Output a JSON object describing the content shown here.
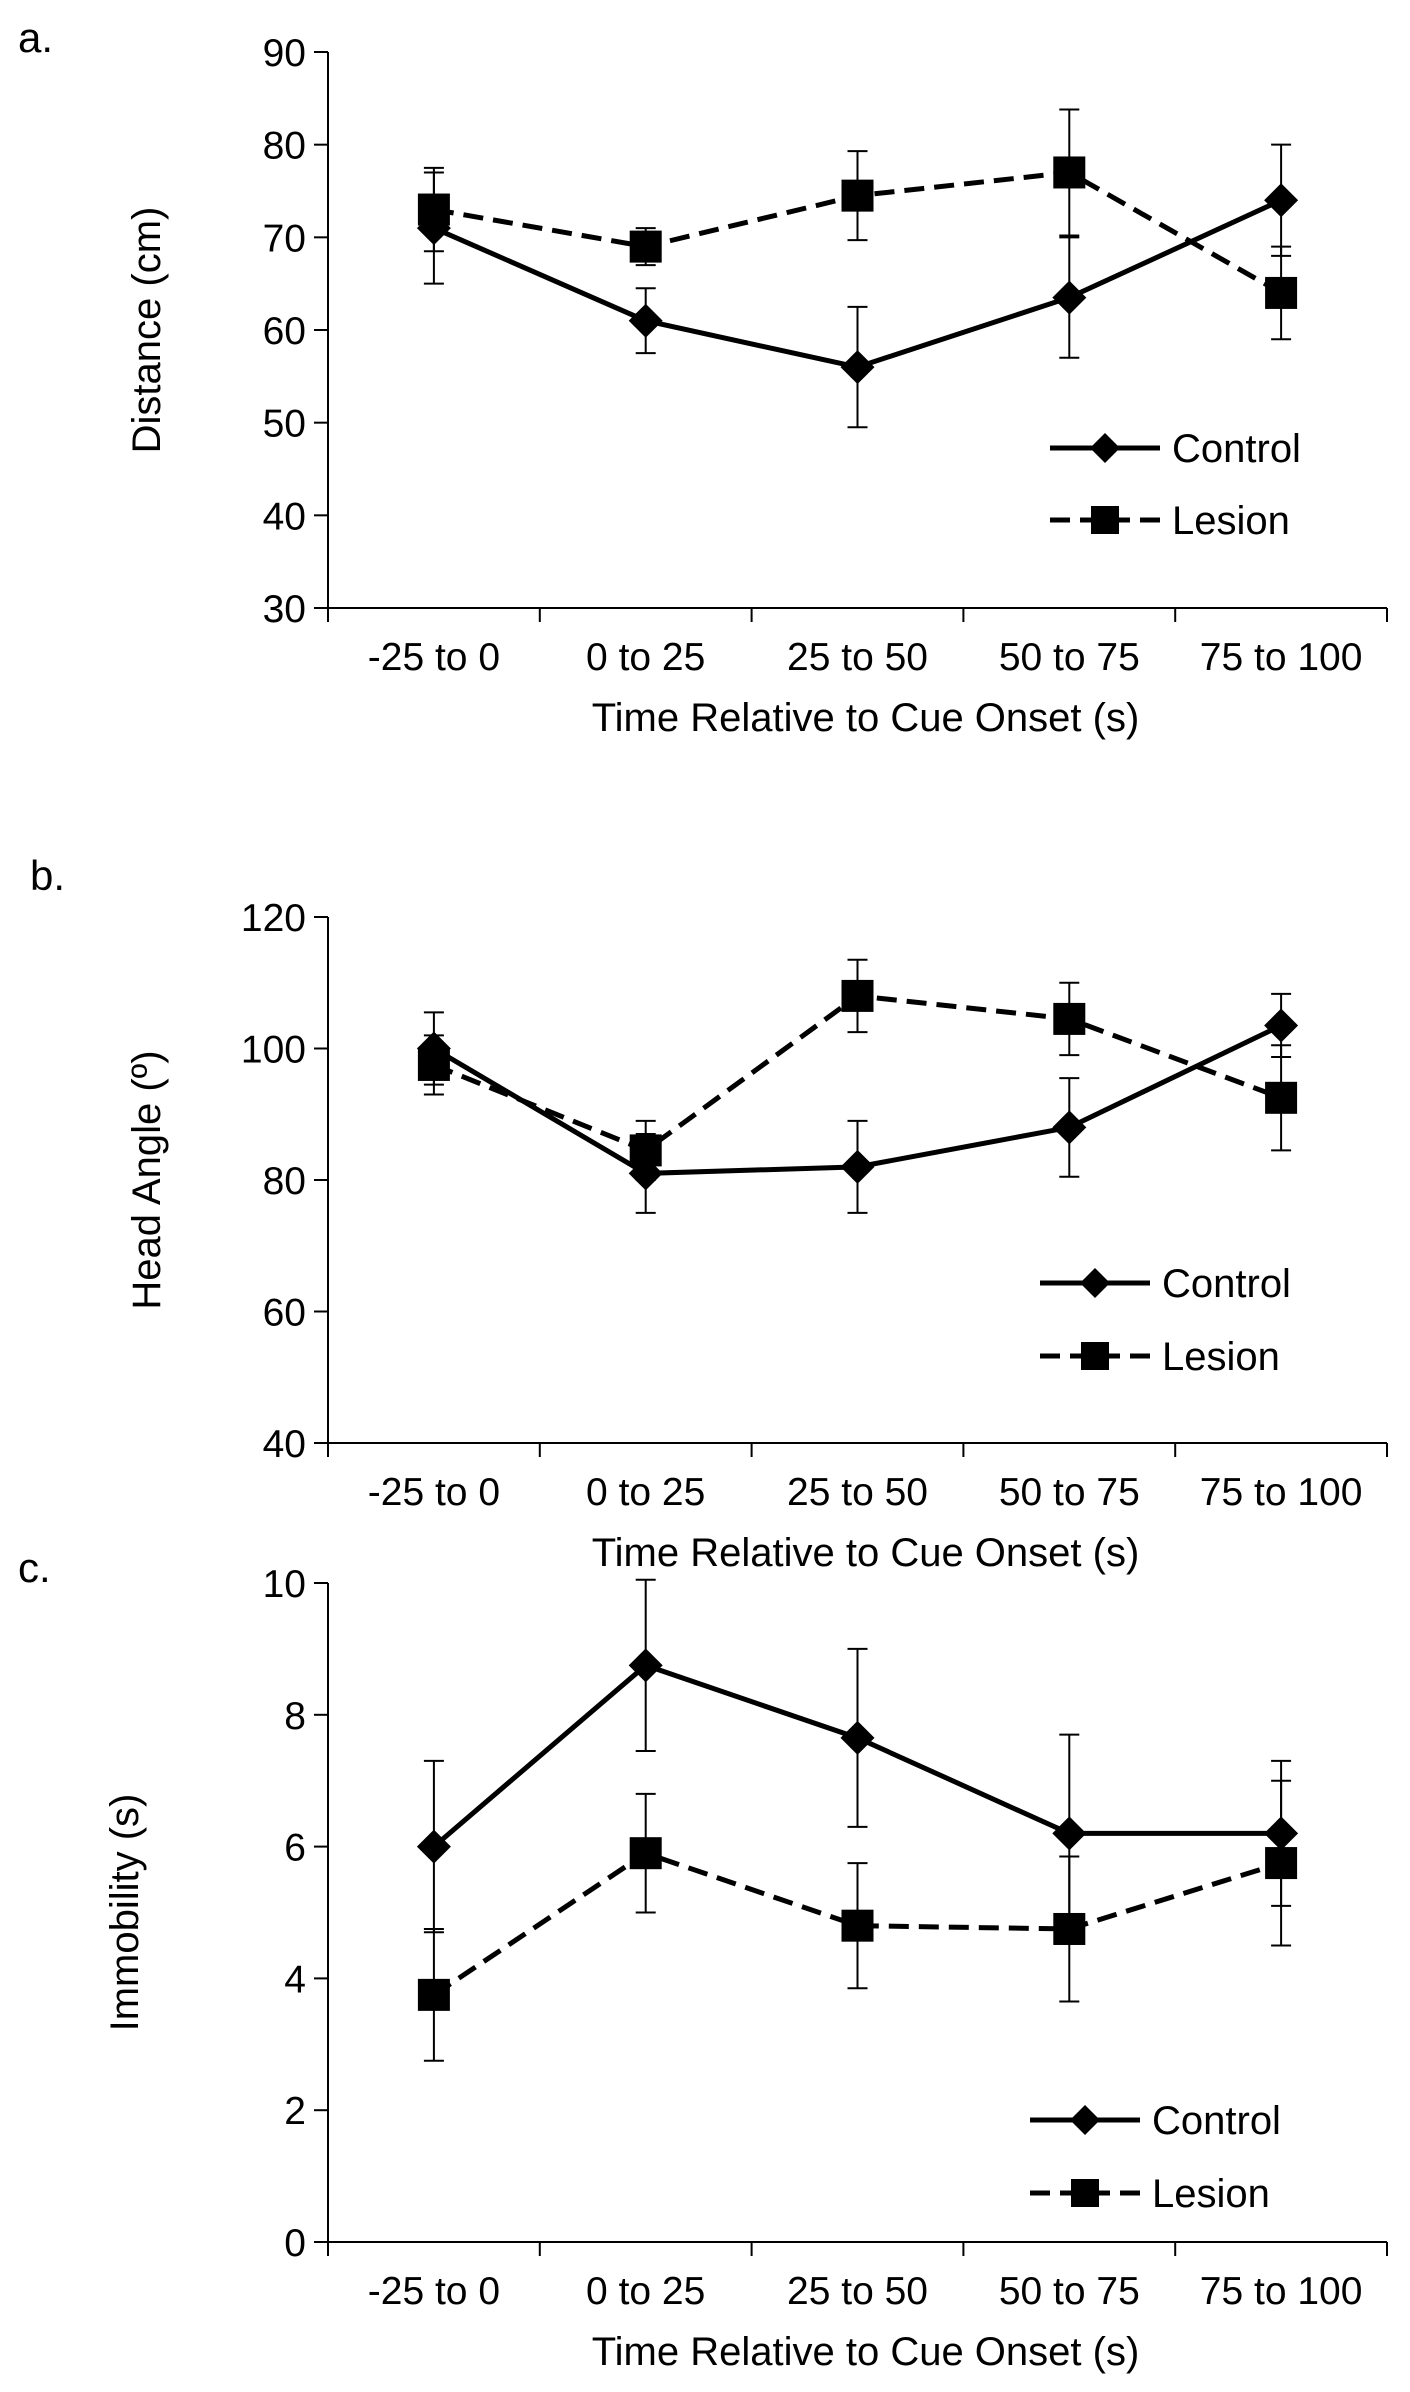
{
  "chart_data": [
    {
      "type": "line",
      "panel_label": "a.",
      "title": "",
      "xlabel": "Time Relative to Cue Onset (s)",
      "ylabel": "Distance (cm)",
      "categories": [
        "-25 to 0",
        "0 to 25",
        "25 to 50",
        "50 to 75",
        "75 to 100"
      ],
      "ylim": [
        30,
        90
      ],
      "yticks": [
        "30",
        "40",
        "50",
        "60",
        "70",
        "80",
        "90"
      ],
      "grid": false,
      "legend_position": "bottom-right",
      "series": [
        {
          "name": "Control",
          "marker": "diamond",
          "dash": "solid",
          "values": [
            71,
            61,
            56,
            63.5,
            74
          ],
          "errors": [
            6,
            3.5,
            6.5,
            6.5,
            6
          ]
        },
        {
          "name": "Lesion",
          "marker": "square",
          "dash": "dashed",
          "values": [
            73,
            69,
            74.5,
            77,
            64
          ],
          "errors": [
            4.5,
            2,
            4.8,
            6.8,
            5
          ]
        }
      ]
    },
    {
      "type": "line",
      "panel_label": "b.",
      "title": "",
      "xlabel": "Time Relative to Cue Onset (s)",
      "ylabel": "Head Angle (º)",
      "categories": [
        "-25 to 0",
        "0 to 25",
        "25 to 50",
        "50 to 75",
        "75 to 100"
      ],
      "ylim": [
        40,
        120
      ],
      "yticks": [
        "40",
        "60",
        "80",
        "100",
        "120"
      ],
      "grid": false,
      "legend_position": "bottom-right",
      "series": [
        {
          "name": "Control",
          "marker": "diamond",
          "dash": "solid",
          "values": [
            100,
            81,
            82,
            88,
            103.5
          ],
          "errors": [
            5.5,
            6,
            7,
            7.5,
            4.8
          ]
        },
        {
          "name": "Lesion",
          "marker": "square",
          "dash": "dashed",
          "values": [
            97.5,
            84.5,
            108,
            104.5,
            92.5
          ],
          "errors": [
            4.5,
            4.5,
            5.5,
            5.5,
            8
          ]
        }
      ]
    },
    {
      "type": "line",
      "panel_label": "c.",
      "title": "",
      "xlabel": "Time Relative to Cue Onset (s)",
      "ylabel": "Immobility (s)",
      "categories": [
        "-25 to 0",
        "0 to 25",
        "25 to 50",
        "50 to 75",
        "75 to 100"
      ],
      "ylim": [
        0,
        10
      ],
      "yticks": [
        "0",
        "2",
        "4",
        "6",
        "8",
        "10"
      ],
      "grid": false,
      "legend_position": "bottom-right",
      "series": [
        {
          "name": "Control",
          "marker": "diamond",
          "dash": "solid",
          "values": [
            6,
            8.75,
            7.65,
            6.2,
            6.2
          ],
          "errors": [
            1.3,
            1.3,
            1.35,
            1.5,
            1.1
          ]
        },
        {
          "name": "Lesion",
          "marker": "square",
          "dash": "dashed",
          "values": [
            3.75,
            5.9,
            4.8,
            4.75,
            5.75
          ],
          "errors": [
            1.0,
            0.9,
            0.95,
            1.1,
            1.25
          ]
        }
      ]
    }
  ]
}
